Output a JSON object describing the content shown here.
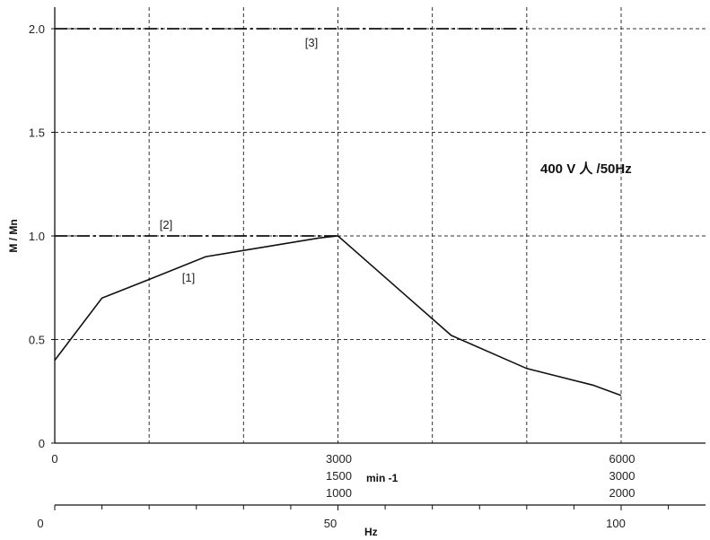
{
  "chart_data": {
    "type": "line",
    "title": "",
    "ylabel": "M / Mn",
    "annotation": "400 V 人 /50Hz",
    "ylim": [
      0,
      2.1
    ],
    "xlim": [
      0,
      6500
    ],
    "y_ticks": [
      "0",
      "0.5",
      "1.0",
      "1.5",
      "2.0"
    ],
    "y_tick_values": [
      0,
      0.5,
      1.0,
      1.5,
      2.0
    ],
    "x_grid": [
      1000,
      2000,
      3000,
      4000,
      5000,
      6000
    ],
    "speed_axis": {
      "unit_label": "min -1",
      "zero_label": "0",
      "ticks": [
        {
          "x": 3000,
          "labels": [
            "3000",
            "1500",
            "1000"
          ]
        },
        {
          "x": 6000,
          "labels": [
            "6000",
            "3000",
            "2000"
          ]
        }
      ]
    },
    "freq_axis": {
      "unit_label": "Hz",
      "ticks": [
        {
          "x": 0,
          "label": "0"
        },
        {
          "x": 3000,
          "label": "50"
        },
        {
          "x": 6000,
          "label": "100"
        }
      ],
      "minor_ticks": [
        500,
        1000,
        1500,
        2000,
        2500,
        3500,
        4000,
        4500,
        5000,
        5500,
        6500
      ]
    },
    "series": [
      {
        "name": "[1]",
        "style": "solid",
        "x": [
          0,
          500,
          1000,
          1600,
          2000,
          2800,
          3000,
          3700,
          4200,
          5000,
          5700,
          6000
        ],
        "y": [
          0.4,
          0.7,
          0.79,
          0.9,
          0.93,
          0.99,
          1.0,
          0.72,
          0.52,
          0.36,
          0.28,
          0.23
        ]
      },
      {
        "name": "[2]",
        "style": "dashdot",
        "x": [
          0,
          3000
        ],
        "y": [
          1.0,
          1.0
        ]
      },
      {
        "name": "[3]",
        "style": "dashdot",
        "x": [
          0,
          5000
        ],
        "y": [
          2.0,
          2.0
        ]
      }
    ],
    "colors": {
      "line": "#111111",
      "grid": "#333333",
      "background": "#ffffff"
    }
  }
}
